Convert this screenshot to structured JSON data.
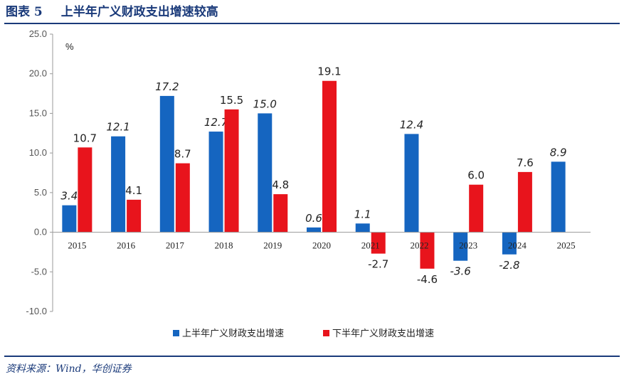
{
  "header": {
    "label": "图表 5",
    "title": "上半年广义财政支出增速较高"
  },
  "footer": {
    "source": "资料来源：Wind，华创证券"
  },
  "colors": {
    "h1": "#1565c0",
    "h2": "#e8141c",
    "rule": "#1a3a7a"
  },
  "chart_data": {
    "type": "bar",
    "unit": "%",
    "categories": [
      "2015",
      "2016",
      "2017",
      "2018",
      "2019",
      "2020",
      "2021",
      "2022",
      "2023",
      "2024",
      "2025"
    ],
    "series": [
      {
        "name": "上半年广义财政支出增速",
        "values": [
          3.4,
          12.1,
          17.2,
          12.7,
          15.0,
          0.6,
          1.1,
          12.4,
          -3.6,
          -2.8,
          8.9
        ],
        "labels": [
          "3.4",
          "12.1",
          "17.2",
          "12.7",
          "15.0",
          "0.6",
          "1.1",
          "12.4",
          "-3.6",
          "-2.8",
          "8.9"
        ]
      },
      {
        "name": "下半年广义财政支出增速",
        "values": [
          10.7,
          4.1,
          8.7,
          15.5,
          4.8,
          19.1,
          -2.7,
          -4.6,
          6.0,
          7.6,
          null
        ],
        "labels": [
          "10.7",
          "4.1",
          "8.7",
          "15.5",
          "4.8",
          "19.1",
          "-2.7",
          "-4.6",
          "6.0",
          "7.6",
          null
        ]
      }
    ],
    "ylim": [
      -10,
      25
    ],
    "yticks": [
      "25.0",
      "20.0",
      "15.0",
      "10.0",
      "5.0",
      "0.0",
      "-5.0",
      "-10.0"
    ],
    "legend_position": "bottom",
    "grid": false
  }
}
